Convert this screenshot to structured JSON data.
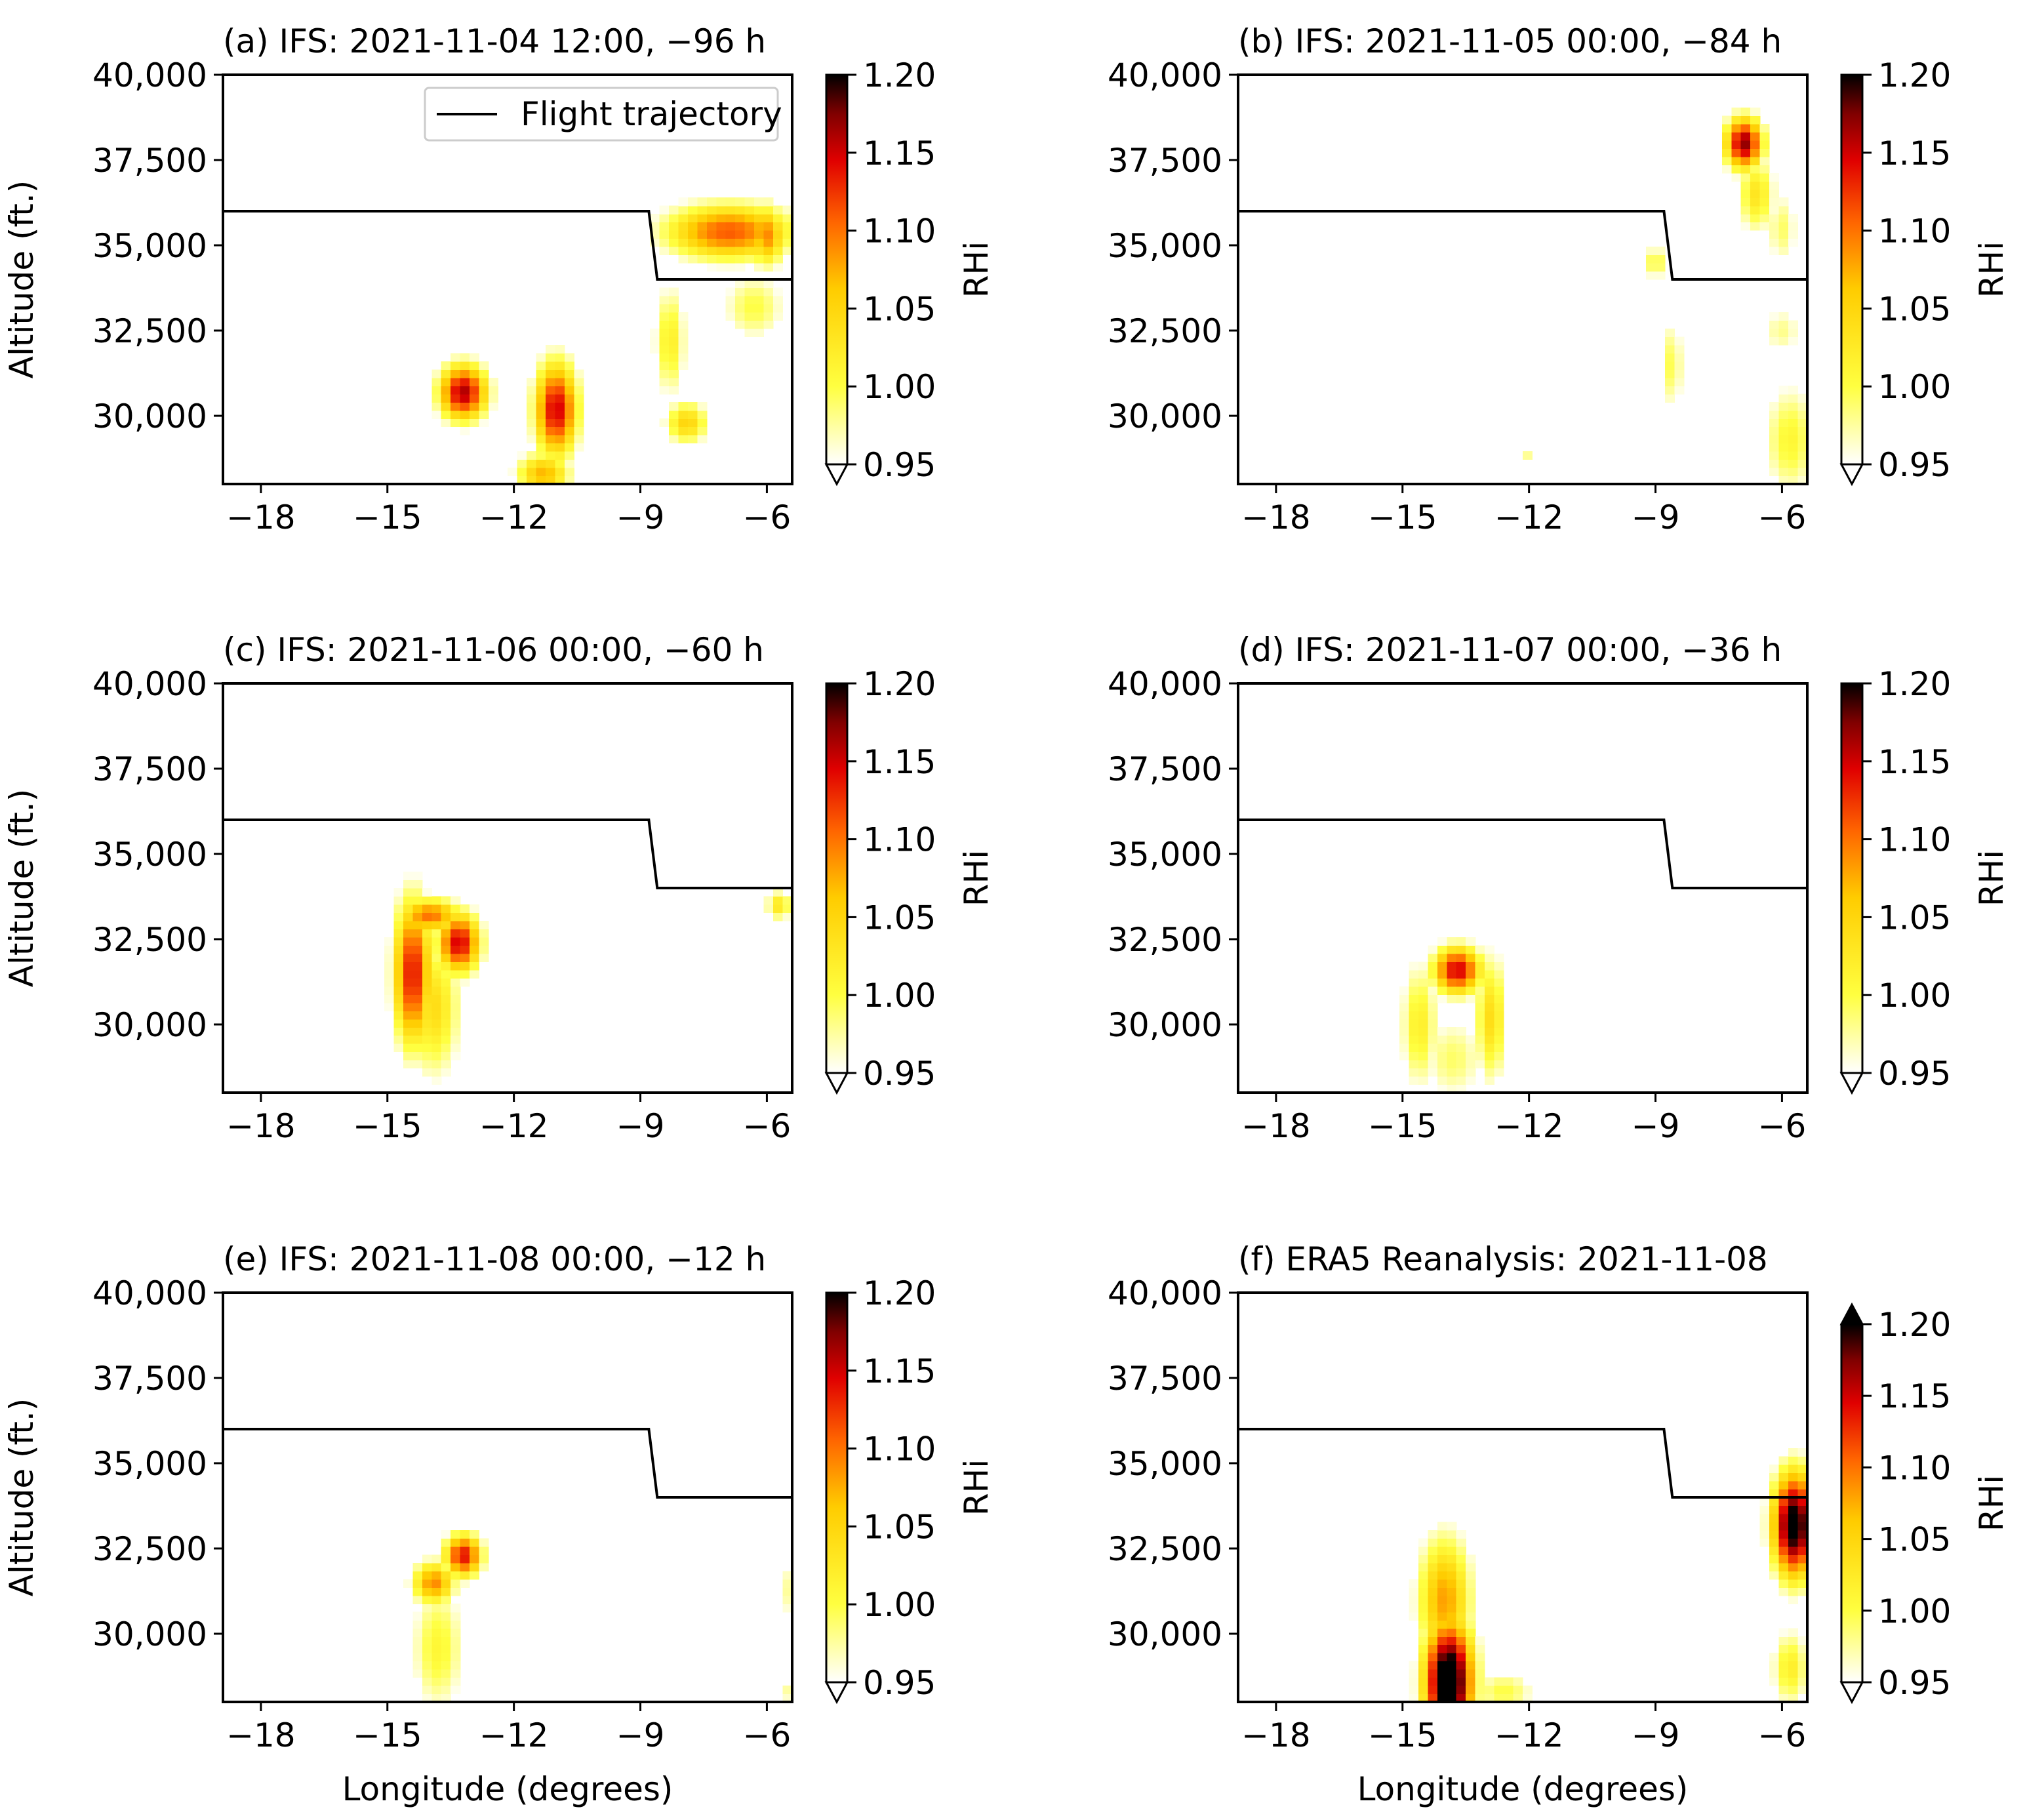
{
  "figure": {
    "colormap": "hot_r",
    "colors": {
      "frame": "#000000",
      "trajectory": "#000000",
      "legend_border": "#cccccc"
    }
  },
  "chart_data": [
    {
      "panel": "a",
      "type": "heatmap",
      "title": "(a) IFS: 2021-11-04 12:00, −96 h",
      "xlabel": "",
      "ylabel": "Altitude (ft.)",
      "xlim": [
        -18.9,
        -5.4
      ],
      "ylim": [
        28000,
        40000
      ],
      "xticks": [
        -18,
        -15,
        -12,
        -9,
        -6
      ],
      "xticklabels": [
        "−18",
        "−15",
        "−12",
        "−9",
        "−6"
      ],
      "yticks": [
        30000,
        32500,
        35000,
        37500,
        40000
      ],
      "yticklabels": [
        "30,000",
        "32,500",
        "35,000",
        "37,500",
        "40,000"
      ],
      "colorbar": {
        "label": "RHi",
        "min": 0.95,
        "max": 1.2,
        "ticks": [
          "0.95",
          "1.00",
          "1.05",
          "1.10",
          "1.15",
          "1.20"
        ],
        "extend": "min"
      },
      "legend": {
        "label": "Flight trajectory",
        "position": "top-right"
      },
      "trajectory": [
        [
          -18.9,
          36000
        ],
        [
          -8.8,
          36000
        ],
        [
          -8.6,
          34000
        ],
        [
          -5.4,
          34000
        ]
      ],
      "blobs": [
        {
          "lon": -13.2,
          "alt": 30700,
          "sx": 0.45,
          "sy": 650,
          "peak": 1.16
        },
        {
          "lon": -11.0,
          "alt": 30200,
          "sx": 0.4,
          "sy": 1100,
          "peak": 1.15
        },
        {
          "lon": -11.3,
          "alt": 28300,
          "sx": 0.5,
          "sy": 500,
          "peak": 1.07
        },
        {
          "lon": -6.9,
          "alt": 35400,
          "sx": 1.2,
          "sy": 650,
          "peak": 1.11
        },
        {
          "lon": -6.0,
          "alt": 35300,
          "sx": 0.35,
          "sy": 700,
          "peak": 1.09
        },
        {
          "lon": -8.3,
          "alt": 32200,
          "sx": 0.3,
          "sy": 1300,
          "peak": 1.02
        },
        {
          "lon": -7.9,
          "alt": 29800,
          "sx": 0.4,
          "sy": 500,
          "peak": 1.05
        },
        {
          "lon": -6.3,
          "alt": 33200,
          "sx": 0.6,
          "sy": 800,
          "peak": 1.0
        }
      ]
    },
    {
      "panel": "b",
      "type": "heatmap",
      "title": "(b) IFS: 2021-11-05 00:00, −84 h",
      "xlabel": "",
      "ylabel": "",
      "xlim": [
        -18.9,
        -5.4
      ],
      "ylim": [
        28000,
        40000
      ],
      "xticks": [
        -18,
        -15,
        -12,
        -9,
        -6
      ],
      "xticklabels": [
        "−18",
        "−15",
        "−12",
        "−9",
        "−6"
      ],
      "yticks": [
        30000,
        32500,
        35000,
        37500,
        40000
      ],
      "yticklabels": [
        "30,000",
        "32,500",
        "35,000",
        "37,500",
        "40,000"
      ],
      "colorbar": {
        "label": "RHi",
        "min": 0.95,
        "max": 1.2,
        "ticks": [
          "0.95",
          "1.00",
          "1.05",
          "1.10",
          "1.15",
          "1.20"
        ],
        "extend": "min"
      },
      "trajectory": [
        [
          -18.9,
          36000
        ],
        [
          -8.8,
          36000
        ],
        [
          -8.6,
          34000
        ],
        [
          -5.4,
          34000
        ]
      ],
      "blobs": [
        {
          "lon": -6.9,
          "alt": 38000,
          "sx": 0.35,
          "sy": 600,
          "peak": 1.17
        },
        {
          "lon": -6.6,
          "alt": 36500,
          "sx": 0.35,
          "sy": 900,
          "peak": 1.03
        },
        {
          "lon": -6.0,
          "alt": 35500,
          "sx": 0.3,
          "sy": 900,
          "peak": 0.99
        },
        {
          "lon": -8.6,
          "alt": 31500,
          "sx": 0.2,
          "sy": 1100,
          "peak": 1.0
        },
        {
          "lon": -9.0,
          "alt": 34500,
          "sx": 0.2,
          "sy": 400,
          "peak": 1.01
        },
        {
          "lon": -5.8,
          "alt": 29300,
          "sx": 0.5,
          "sy": 1300,
          "peak": 1.01
        },
        {
          "lon": -6.0,
          "alt": 32500,
          "sx": 0.4,
          "sy": 600,
          "peak": 0.98
        },
        {
          "lon": -12.0,
          "alt": 28800,
          "sx": 0.2,
          "sy": 200,
          "peak": 0.98
        }
      ]
    },
    {
      "panel": "c",
      "type": "heatmap",
      "title": "(c) IFS: 2021-11-06 00:00, −60 h",
      "xlabel": "",
      "ylabel": "Altitude (ft.)",
      "xlim": [
        -18.9,
        -5.4
      ],
      "ylim": [
        28000,
        40000
      ],
      "xticks": [
        -18,
        -15,
        -12,
        -9,
        -6
      ],
      "xticklabels": [
        "−18",
        "−15",
        "−12",
        "−9",
        "−6"
      ],
      "yticks": [
        30000,
        32500,
        35000,
        37500,
        40000
      ],
      "yticklabels": [
        "30,000",
        "32,500",
        "35,000",
        "37,500",
        "40,000"
      ],
      "colorbar": {
        "label": "RHi",
        "min": 0.95,
        "max": 1.2,
        "ticks": [
          "0.95",
          "1.00",
          "1.05",
          "1.10",
          "1.15",
          "1.20"
        ],
        "extend": "min"
      },
      "trajectory": [
        [
          -18.9,
          36000
        ],
        [
          -8.8,
          36000
        ],
        [
          -8.6,
          34000
        ],
        [
          -5.4,
          34000
        ]
      ],
      "blobs": [
        {
          "lon": -14.4,
          "alt": 31500,
          "sx": 0.35,
          "sy": 1700,
          "peak": 1.14
        },
        {
          "lon": -13.3,
          "alt": 32400,
          "sx": 0.4,
          "sy": 700,
          "peak": 1.15
        },
        {
          "lon": -13.9,
          "alt": 30500,
          "sx": 0.5,
          "sy": 1600,
          "peak": 1.04
        },
        {
          "lon": -14.0,
          "alt": 33200,
          "sx": 0.6,
          "sy": 400,
          "peak": 1.1
        },
        {
          "lon": -5.7,
          "alt": 33500,
          "sx": 0.25,
          "sy": 350,
          "peak": 1.03
        }
      ]
    },
    {
      "panel": "d",
      "type": "heatmap",
      "title": "(d) IFS: 2021-11-07 00:00, −36 h",
      "xlabel": "",
      "ylabel": "",
      "xlim": [
        -18.9,
        -5.4
      ],
      "ylim": [
        28000,
        40000
      ],
      "xticks": [
        -18,
        -15,
        -12,
        -9,
        -6
      ],
      "xticklabels": [
        "−18",
        "−15",
        "−12",
        "−9",
        "−6"
      ],
      "yticks": [
        30000,
        32500,
        35000,
        37500,
        40000
      ],
      "yticklabels": [
        "30,000",
        "32,500",
        "35,000",
        "37,500",
        "40,000"
      ],
      "colorbar": {
        "label": "RHi",
        "min": 0.95,
        "max": 1.2,
        "ticks": [
          "0.95",
          "1.00",
          "1.05",
          "1.10",
          "1.15",
          "1.20"
        ],
        "extend": "min"
      },
      "trajectory": [
        [
          -18.9,
          36000
        ],
        [
          -8.8,
          36000
        ],
        [
          -8.6,
          34000
        ],
        [
          -5.4,
          34000
        ]
      ],
      "blobs": [
        {
          "lon": -13.7,
          "alt": 31600,
          "sx": 0.45,
          "sy": 550,
          "peak": 1.15
        },
        {
          "lon": -14.6,
          "alt": 30000,
          "sx": 0.35,
          "sy": 1500,
          "peak": 1.02
        },
        {
          "lon": -12.9,
          "alt": 30200,
          "sx": 0.3,
          "sy": 1500,
          "peak": 1.04
        },
        {
          "lon": -13.8,
          "alt": 29000,
          "sx": 0.6,
          "sy": 1000,
          "peak": 0.99
        }
      ]
    },
    {
      "panel": "e",
      "type": "heatmap",
      "title": "(e) IFS: 2021-11-08 00:00, −12 h",
      "xlabel": "Longitude (degrees)",
      "ylabel": "Altitude (ft.)",
      "xlim": [
        -18.9,
        -5.4
      ],
      "ylim": [
        28000,
        40000
      ],
      "xticks": [
        -18,
        -15,
        -12,
        -9,
        -6
      ],
      "xticklabels": [
        "−18",
        "−15",
        "−12",
        "−9",
        "−6"
      ],
      "yticks": [
        30000,
        32500,
        35000,
        37500,
        40000
      ],
      "yticklabels": [
        "30,000",
        "32,500",
        "35,000",
        "37,500",
        "40,000"
      ],
      "colorbar": {
        "label": "RHi",
        "min": 0.95,
        "max": 1.2,
        "ticks": [
          "0.95",
          "1.00",
          "1.05",
          "1.10",
          "1.15",
          "1.20"
        ],
        "extend": "min"
      },
      "trajectory": [
        [
          -18.9,
          36000
        ],
        [
          -8.8,
          36000
        ],
        [
          -8.6,
          34000
        ],
        [
          -5.4,
          34000
        ]
      ],
      "blobs": [
        {
          "lon": -13.2,
          "alt": 32300,
          "sx": 0.35,
          "sy": 500,
          "peak": 1.14
        },
        {
          "lon": -13.9,
          "alt": 31500,
          "sx": 0.4,
          "sy": 500,
          "peak": 1.09
        },
        {
          "lon": -13.8,
          "alt": 29600,
          "sx": 0.5,
          "sy": 1500,
          "peak": 1.01
        },
        {
          "lon": -5.4,
          "alt": 31300,
          "sx": 0.15,
          "sy": 800,
          "peak": 1.0
        },
        {
          "lon": -5.4,
          "alt": 28300,
          "sx": 0.15,
          "sy": 300,
          "peak": 1.0
        }
      ]
    },
    {
      "panel": "f",
      "type": "heatmap",
      "title": "(f) ERA5 Reanalysis: 2021-11-08",
      "xlabel": "Longitude (degrees)",
      "ylabel": "",
      "xlim": [
        -18.9,
        -5.4
      ],
      "ylim": [
        28000,
        40000
      ],
      "xticks": [
        -18,
        -15,
        -12,
        -9,
        -6
      ],
      "xticklabels": [
        "−18",
        "−15",
        "−12",
        "−9",
        "−6"
      ],
      "yticks": [
        30000,
        32500,
        35000,
        37500,
        40000
      ],
      "yticklabels": [
        "30,000",
        "32,500",
        "35,000",
        "37,500",
        "40,000"
      ],
      "colorbar": {
        "label": "RHi",
        "min": 0.95,
        "max": 1.2,
        "ticks": [
          "0.95",
          "1.00",
          "1.05",
          "1.10",
          "1.15",
          "1.20"
        ],
        "extend": "both"
      },
      "trajectory": [
        [
          -18.9,
          36000
        ],
        [
          -8.8,
          36000
        ],
        [
          -8.6,
          34000
        ],
        [
          -5.4,
          34000
        ]
      ],
      "blobs": [
        {
          "lon": -13.9,
          "alt": 28600,
          "sx": 0.45,
          "sy": 1400,
          "peak": 1.24
        },
        {
          "lon": -14.0,
          "alt": 31000,
          "sx": 0.5,
          "sy": 1500,
          "peak": 1.08
        },
        {
          "lon": -12.6,
          "alt": 28300,
          "sx": 0.6,
          "sy": 500,
          "peak": 1.0
        },
        {
          "lon": -5.7,
          "alt": 33200,
          "sx": 0.4,
          "sy": 1200,
          "peak": 1.22
        },
        {
          "lon": -5.8,
          "alt": 29000,
          "sx": 0.35,
          "sy": 900,
          "peak": 1.02
        }
      ]
    }
  ]
}
